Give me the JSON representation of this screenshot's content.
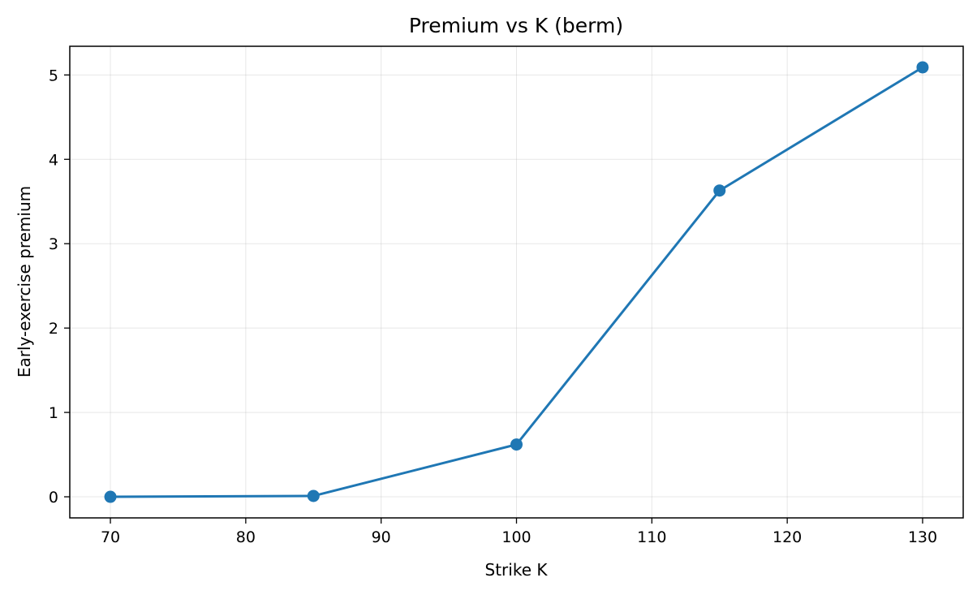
{
  "chart_data": {
    "type": "line",
    "title": "Premium vs K (berm)",
    "xlabel": "Strike K",
    "ylabel": "Early-exercise premium",
    "x": [
      70,
      85,
      100,
      115,
      130
    ],
    "series": [
      {
        "values": [
          0.0,
          0.01,
          0.62,
          3.63,
          5.09
        ]
      }
    ],
    "xlim": [
      67,
      133
    ],
    "ylim": [
      -0.25,
      5.34
    ],
    "xticks": [
      70,
      80,
      90,
      100,
      110,
      120,
      130
    ],
    "yticks": [
      0,
      1,
      2,
      3,
      4,
      5
    ],
    "marker": "circle",
    "grid": true,
    "color": "#1f77b4"
  }
}
